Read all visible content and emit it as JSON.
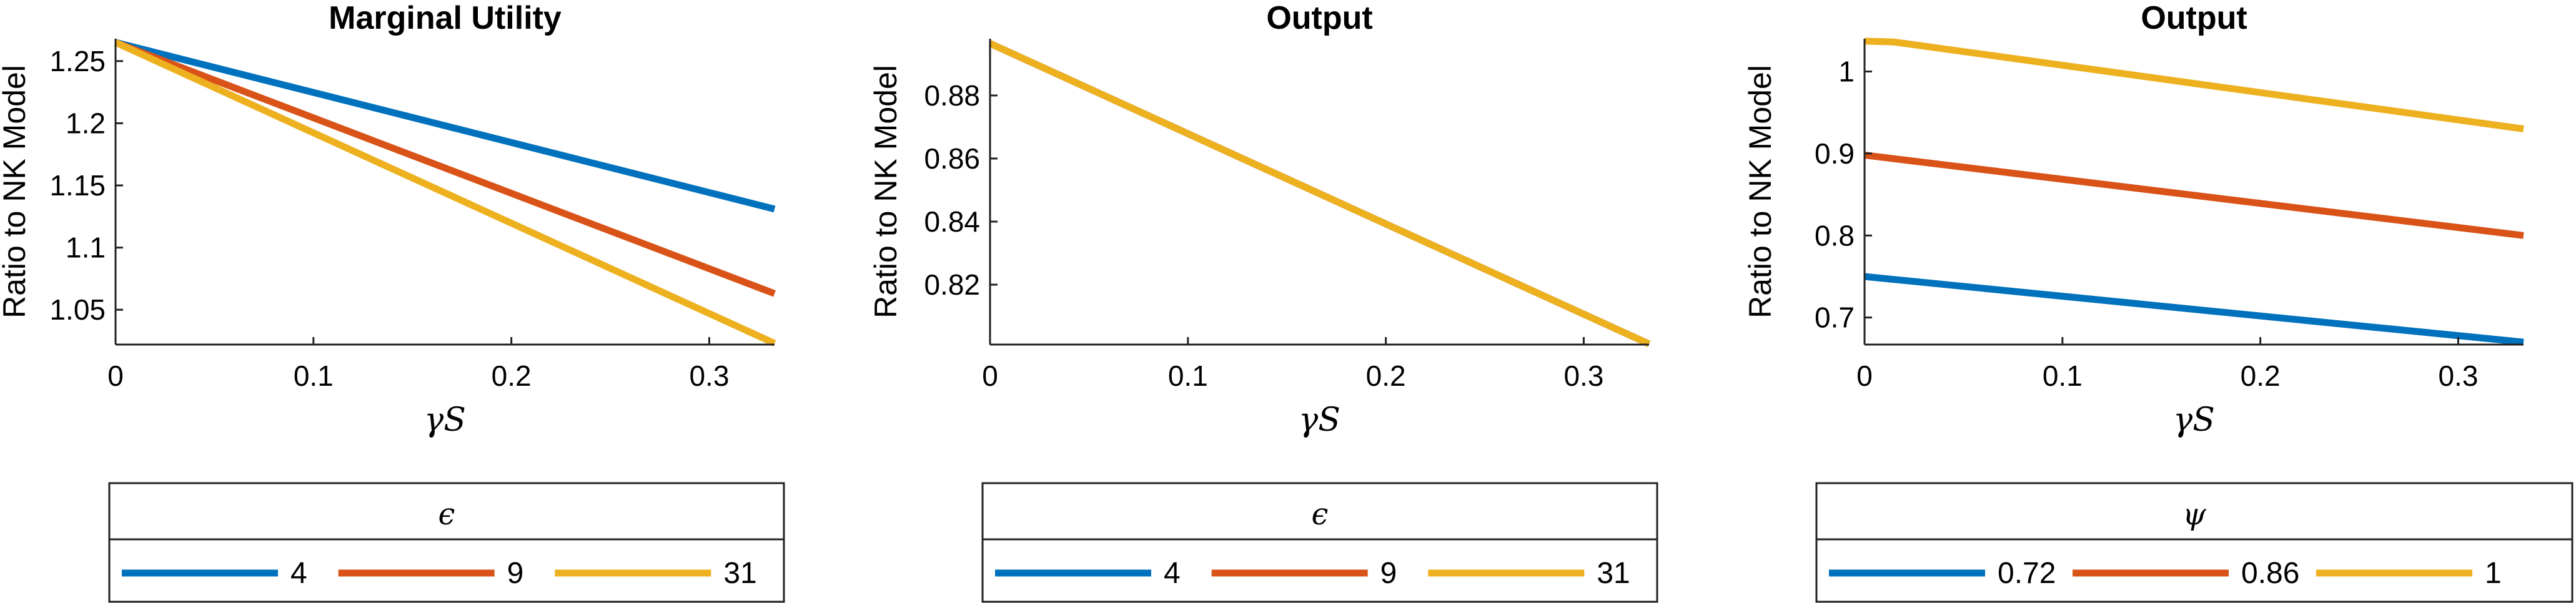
{
  "colors": {
    "blue": "#0072BD",
    "red": "#D95319",
    "yellow": "#EDB120"
  },
  "chart_data": [
    {
      "type": "line",
      "title": "Marginal Utility",
      "xlabel": "γS",
      "ylabel": "Ratio to NK Model",
      "xlim": [
        0,
        0.333
      ],
      "ylim": [
        1.022,
        1.268
      ],
      "xticks": [
        0,
        0.1,
        0.2,
        0.3
      ],
      "xtick_labels": [
        "0",
        "0.1",
        "0.2",
        "0.3"
      ],
      "yticks": [
        1.05,
        1.1,
        1.15,
        1.2,
        1.25
      ],
      "ytick_labels": [
        "1.05",
        "1.1",
        "1.15",
        "1.2",
        "1.25"
      ],
      "legend_title": "ϵ",
      "legend_position": "below",
      "series": [
        {
          "name": "4",
          "color": "#0072BD",
          "x": [
            0,
            0.333
          ],
          "y": [
            1.265,
            1.131
          ]
        },
        {
          "name": "9",
          "color": "#D95319",
          "x": [
            0,
            0.333
          ],
          "y": [
            1.265,
            1.063
          ]
        },
        {
          "name": "31",
          "color": "#EDB120",
          "x": [
            0,
            0.333
          ],
          "y": [
            1.265,
            1.023
          ]
        }
      ]
    },
    {
      "type": "line",
      "title": "Output",
      "xlabel": "γS",
      "ylabel": "Ratio to NK Model",
      "xlim": [
        0,
        0.333
      ],
      "ylim": [
        0.801,
        0.898
      ],
      "xticks": [
        0,
        0.1,
        0.2,
        0.3
      ],
      "xtick_labels": [
        "0",
        "0.1",
        "0.2",
        "0.3"
      ],
      "yticks": [
        0.82,
        0.84,
        0.86,
        0.88
      ],
      "ytick_labels": [
        "0.82",
        "0.84",
        "0.86",
        "0.88"
      ],
      "legend_title": "ϵ",
      "legend_position": "below",
      "series": [
        {
          "name": "4",
          "color": "#0072BD",
          "x": [
            0,
            0.333
          ],
          "y": [
            0.8965,
            0.8012
          ]
        },
        {
          "name": "9",
          "color": "#D95319",
          "x": [
            0,
            0.333
          ],
          "y": [
            0.8965,
            0.8012
          ]
        },
        {
          "name": "31",
          "color": "#EDB120",
          "x": [
            0,
            0.333
          ],
          "y": [
            0.8965,
            0.8012
          ]
        }
      ]
    },
    {
      "type": "line",
      "title": "Output",
      "xlabel": "γS",
      "ylabel": "Ratio to NK Model",
      "xlim": [
        0,
        0.333
      ],
      "ylim": [
        0.667,
        1.04
      ],
      "xticks": [
        0,
        0.1,
        0.2,
        0.3
      ],
      "xtick_labels": [
        "0",
        "0.1",
        "0.2",
        "0.3"
      ],
      "yticks": [
        0.7,
        0.8,
        0.9,
        1.0
      ],
      "ytick_labels": [
        "0.7",
        "0.8",
        "0.9",
        "1"
      ],
      "legend_title": "ψ",
      "legend_position": "below",
      "series": [
        {
          "name": "0.72",
          "color": "#0072BD",
          "x": [
            0,
            0.333
          ],
          "y": [
            0.75,
            0.67
          ]
        },
        {
          "name": "0.86",
          "color": "#D95319",
          "x": [
            0,
            0.333
          ],
          "y": [
            0.898,
            0.8
          ]
        },
        {
          "name": "1",
          "color": "#EDB120",
          "x": [
            0,
            0.015,
            0.333
          ],
          "y": [
            1.037,
            1.036,
            0.93
          ]
        }
      ]
    }
  ]
}
